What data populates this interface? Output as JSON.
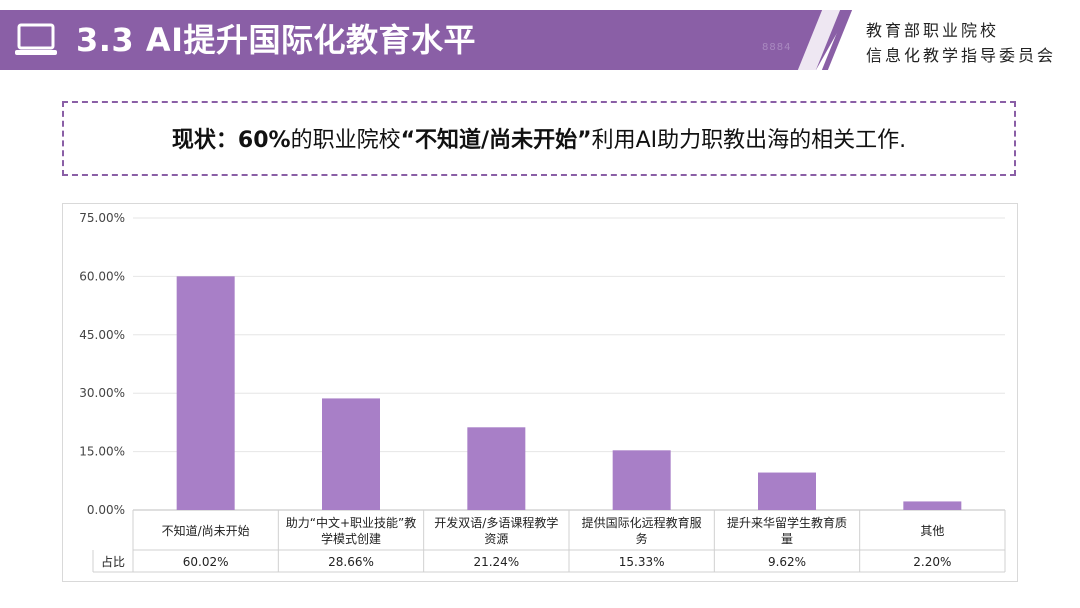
{
  "header": {
    "title": "3.3 AI提升国际化教育水平",
    "faint_mark": "8884",
    "org_line1": "教育部职业院校",
    "org_line2": "信息化教学指导委员会"
  },
  "status": {
    "prefix": "现状：",
    "percent": "60%",
    "middle": "的职业院校",
    "quote": "“不知道/尚未开始”",
    "suffix": "利用AI助力职教出海的相关工作."
  },
  "colors": {
    "accent": "#8a5fa6",
    "bar": "#a87fc7"
  },
  "chart_data": {
    "type": "bar",
    "categories": [
      "不知道/尚未开始",
      "助力“中文+职业技能”教学模式创建",
      "开发双语/多语课程教学资源",
      "提供国际化远程教育服务",
      "提升来华留学生教育质量",
      "其他"
    ],
    "category_lines": [
      [
        "不知道/尚未开始"
      ],
      [
        "助力“中文+职业技能”教",
        "学模式创建"
      ],
      [
        "开发双语/多语课程教学",
        "资源"
      ],
      [
        "提供国际化远程教育服",
        "务"
      ],
      [
        "提升来华留学生教育质",
        "量"
      ],
      [
        "其他"
      ]
    ],
    "series": [
      {
        "name": "占比",
        "values": [
          60.02,
          28.66,
          21.24,
          15.33,
          9.62,
          2.2
        ],
        "value_labels": [
          "60.02%",
          "28.66%",
          "21.24%",
          "15.33%",
          "9.62%",
          "2.20%"
        ]
      }
    ],
    "yticks": [
      "0.00%",
      "15.00%",
      "30.00%",
      "45.00%",
      "60.00%",
      "75.00%"
    ],
    "ylim": [
      0,
      75
    ],
    "grid": true,
    "legend": "data-table"
  }
}
